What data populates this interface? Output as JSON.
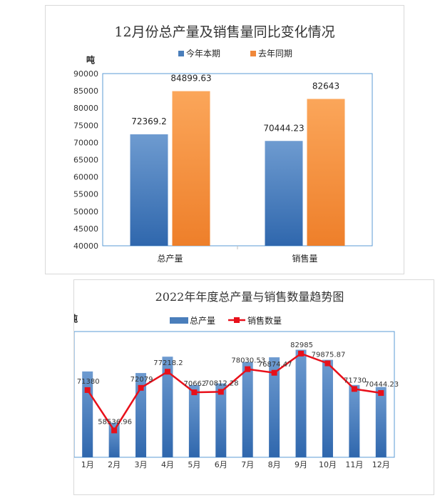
{
  "chart_data": [
    {
      "type": "bar",
      "title": "12月份总产量及销售量同比变化情况",
      "ylabel": "吨",
      "categories": [
        "总产量",
        "销售量"
      ],
      "series": [
        {
          "name": "今年本期",
          "values": [
            72369.2,
            70444.23
          ],
          "labels": [
            "72369.2",
            "70444.23"
          ]
        },
        {
          "name": "去年同期",
          "values": [
            84899.63,
            82643
          ],
          "labels": [
            "84899.63",
            "82643"
          ]
        }
      ],
      "ylim": [
        40000,
        90000
      ],
      "yticks": [
        40000,
        45000,
        50000,
        55000,
        60000,
        65000,
        70000,
        75000,
        80000,
        85000,
        90000
      ],
      "legend": "top",
      "colors": {
        "series0": "#4a7ebb",
        "series1": "#f79646",
        "plot_border": "#5b9bd5"
      }
    },
    {
      "type": "bar",
      "title": "2022年年度总产量与销售数量趋势图",
      "ylabel": "吨",
      "categories": [
        "1月",
        "2月",
        "3月",
        "4月",
        "5月",
        "6月",
        "7月",
        "8月",
        "9月",
        "10月",
        "11月",
        "12月"
      ],
      "series": [
        {
          "name": "总产量",
          "type": "bar",
          "values": [
            77300,
            61000,
            76800,
            82000,
            73000,
            73500,
            80300,
            81800,
            84200,
            81000,
            73000,
            72369.2
          ]
        },
        {
          "name": "销售数量",
          "type": "line",
          "values": [
            71380,
            58536.96,
            72079,
            77218.2,
            70662,
            70812.28,
            78030.53,
            76874.47,
            82985,
            79875.87,
            71730,
            70444.23
          ],
          "labels": [
            "71380",
            "58536.96",
            "72079",
            "77218.2",
            "70662",
            "70812.28",
            "78030.53",
            "76874.47",
            "82985",
            "79875.87",
            "71730",
            "70444.23"
          ]
        }
      ],
      "ylim": [
        50000,
        90000
      ],
      "yticks": [
        50000,
        55000,
        60000,
        65000,
        70000,
        75000,
        80000,
        85000,
        90000
      ],
      "legend": "top",
      "colors": {
        "bar": "#4a7ebb",
        "line": "#e8101a",
        "plot_border": "#5b9bd5"
      }
    }
  ]
}
